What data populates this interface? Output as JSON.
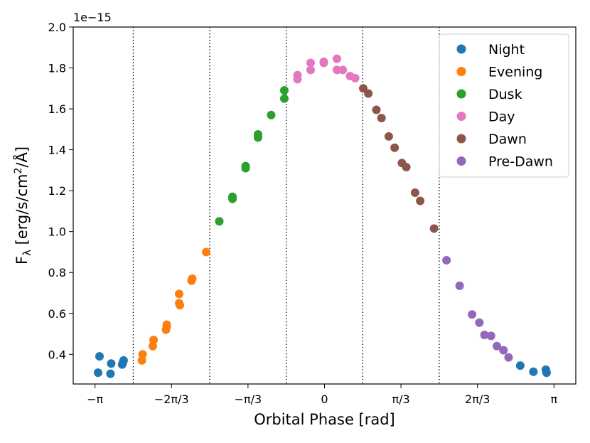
{
  "chart_data": {
    "type": "scatter",
    "xlabel": "Orbital Phase [rad]",
    "ylabel_main": "F",
    "ylabel_sub": "λ",
    "ylabel_units_pre": " [erg/s/cm",
    "ylabel_units_sup": "2",
    "ylabel_units_post": "/Å]",
    "y_offset_label": "1e−15",
    "xlim": [
      -3.44,
      3.44
    ],
    "ylim": [
      0.255,
      2.0
    ],
    "xticks": [
      {
        "value": -3.14159,
        "label": "−π"
      },
      {
        "value": -2.0944,
        "label": "−2π/3"
      },
      {
        "value": -1.0472,
        "label": "−π/3"
      },
      {
        "value": 0,
        "label": "0"
      },
      {
        "value": 1.0472,
        "label": "π/3"
      },
      {
        "value": 2.0944,
        "label": "2π/3"
      },
      {
        "value": 3.14159,
        "label": "π"
      }
    ],
    "yticks": [
      {
        "value": 0.4,
        "label": "0.4"
      },
      {
        "value": 0.6,
        "label": "0.6"
      },
      {
        "value": 0.8,
        "label": "0.8"
      },
      {
        "value": 1.0,
        "label": "1.0"
      },
      {
        "value": 1.2,
        "label": "1.2"
      },
      {
        "value": 1.4,
        "label": "1.4"
      },
      {
        "value": 1.6,
        "label": "1.6"
      },
      {
        "value": 1.8,
        "label": "1.8"
      },
      {
        "value": 2.0,
        "label": "2.0"
      }
    ],
    "vlines": [
      -2.618,
      -1.571,
      -0.524,
      0.524,
      1.571
    ],
    "legend_position": "top-right",
    "series": [
      {
        "name": "Night",
        "color": "#1f77b4",
        "points": [
          [
            -3.1,
            0.31
          ],
          [
            -3.08,
            0.39
          ],
          [
            -2.93,
            0.305
          ],
          [
            -2.92,
            0.355
          ],
          [
            -2.77,
            0.35
          ],
          [
            -2.76,
            0.36
          ],
          [
            -2.75,
            0.37
          ],
          [
            2.68,
            0.345
          ],
          [
            2.86,
            0.315
          ],
          [
            3.03,
            0.325
          ],
          [
            3.04,
            0.31
          ]
        ]
      },
      {
        "name": "Evening",
        "color": "#ff7f0e",
        "points": [
          [
            -2.5,
            0.37
          ],
          [
            -2.49,
            0.4
          ],
          [
            -2.35,
            0.44
          ],
          [
            -2.34,
            0.47
          ],
          [
            -2.17,
            0.52
          ],
          [
            -2.16,
            0.535
          ],
          [
            -2.16,
            0.545
          ],
          [
            -1.99,
            0.65
          ],
          [
            -1.98,
            0.64
          ],
          [
            -1.99,
            0.695
          ],
          [
            -1.82,
            0.76
          ],
          [
            -1.81,
            0.77
          ],
          [
            -1.62,
            0.9
          ]
        ]
      },
      {
        "name": "Dusk",
        "color": "#2ca02c",
        "points": [
          [
            -1.44,
            1.05
          ],
          [
            -1.26,
            1.16
          ],
          [
            -1.26,
            1.17
          ],
          [
            -1.08,
            1.31
          ],
          [
            -1.08,
            1.32
          ],
          [
            -0.91,
            1.46
          ],
          [
            -0.91,
            1.475
          ],
          [
            -0.73,
            1.57
          ],
          [
            -0.55,
            1.65
          ],
          [
            -0.55,
            1.69
          ]
        ]
      },
      {
        "name": "Day",
        "color": "#e377c2",
        "points": [
          [
            -0.37,
            1.745
          ],
          [
            -0.37,
            1.765
          ],
          [
            -0.19,
            1.79
          ],
          [
            -0.19,
            1.825
          ],
          [
            -0.01,
            1.825
          ],
          [
            -0.01,
            1.83
          ],
          [
            0.17,
            1.79
          ],
          [
            0.17,
            1.845
          ],
          [
            0.25,
            1.79
          ],
          [
            0.35,
            1.76
          ],
          [
            0.42,
            1.75
          ]
        ]
      },
      {
        "name": "Dawn",
        "color": "#8c564b",
        "points": [
          [
            0.53,
            1.7
          ],
          [
            0.6,
            1.675
          ],
          [
            0.71,
            1.595
          ],
          [
            0.78,
            1.555
          ],
          [
            0.88,
            1.465
          ],
          [
            0.96,
            1.41
          ],
          [
            1.06,
            1.335
          ],
          [
            1.12,
            1.315
          ],
          [
            1.24,
            1.19
          ],
          [
            1.31,
            1.15
          ],
          [
            1.5,
            1.015
          ]
        ]
      },
      {
        "name": "Pre-Dawn",
        "color": "#9467bd",
        "points": [
          [
            1.67,
            0.86
          ],
          [
            1.85,
            0.735
          ],
          [
            2.02,
            0.595
          ],
          [
            2.12,
            0.555
          ],
          [
            2.19,
            0.495
          ],
          [
            2.28,
            0.49
          ],
          [
            2.36,
            0.44
          ],
          [
            2.45,
            0.42
          ],
          [
            2.52,
            0.385
          ]
        ]
      }
    ]
  }
}
